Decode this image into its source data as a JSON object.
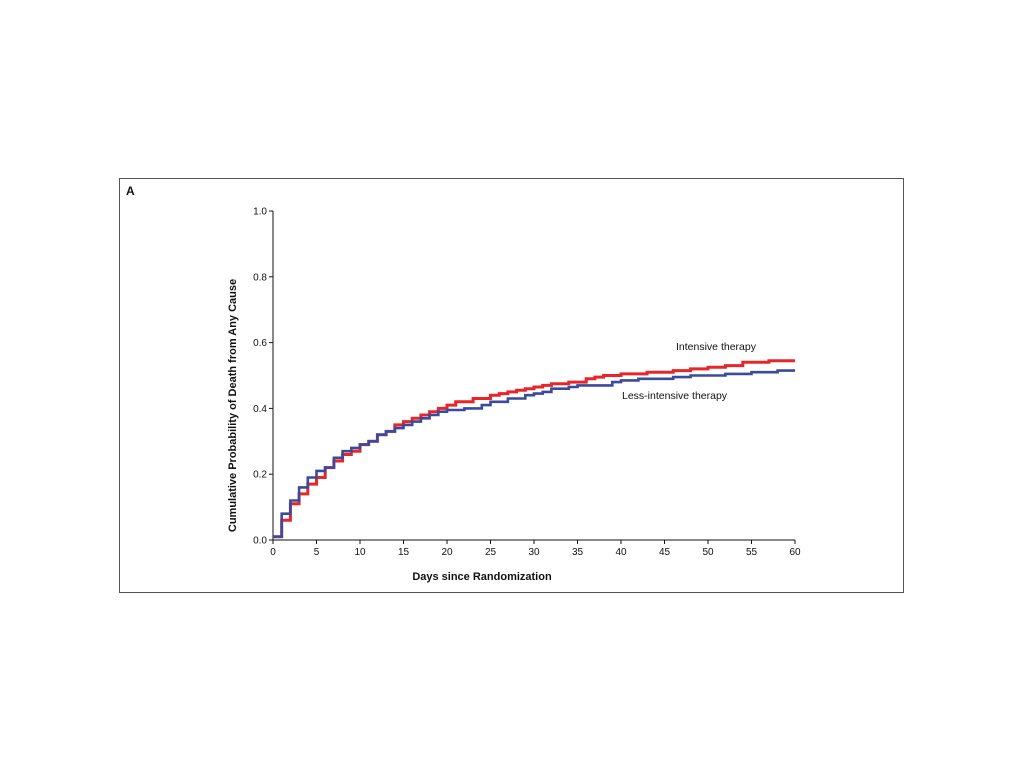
{
  "panel_label": "A",
  "chart_data": {
    "type": "line",
    "step": true,
    "xlabel": "Days since Randomization",
    "ylabel": "Cumulative Probability of Death from Any Cause",
    "xlim": [
      0,
      60
    ],
    "ylim": [
      0,
      1.0
    ],
    "x_ticks": [
      0,
      5,
      10,
      15,
      20,
      25,
      30,
      35,
      40,
      45,
      50,
      55,
      60
    ],
    "y_ticks": [
      0.0,
      0.2,
      0.4,
      0.6,
      0.8,
      1.0
    ],
    "y_tick_labels": [
      "0.0",
      "0.2",
      "0.4",
      "0.6",
      "0.8",
      "1.0"
    ],
    "grid": false,
    "legend": "inline labels near line ends",
    "series": [
      {
        "name": "Intensive therapy",
        "color": "#e8262a",
        "points": [
          [
            0,
            0.01
          ],
          [
            1,
            0.06
          ],
          [
            2,
            0.11
          ],
          [
            3,
            0.14
          ],
          [
            4,
            0.17
          ],
          [
            5,
            0.19
          ],
          [
            6,
            0.22
          ],
          [
            7,
            0.24
          ],
          [
            8,
            0.26
          ],
          [
            9,
            0.27
          ],
          [
            10,
            0.29
          ],
          [
            11,
            0.3
          ],
          [
            12,
            0.32
          ],
          [
            13,
            0.33
          ],
          [
            14,
            0.35
          ],
          [
            15,
            0.36
          ],
          [
            16,
            0.37
          ],
          [
            17,
            0.38
          ],
          [
            18,
            0.39
          ],
          [
            19,
            0.4
          ],
          [
            20,
            0.41
          ],
          [
            21,
            0.42
          ],
          [
            23,
            0.43
          ],
          [
            25,
            0.44
          ],
          [
            26,
            0.445
          ],
          [
            27,
            0.45
          ],
          [
            28,
            0.455
          ],
          [
            29,
            0.46
          ],
          [
            30,
            0.465
          ],
          [
            31,
            0.47
          ],
          [
            32,
            0.475
          ],
          [
            34,
            0.48
          ],
          [
            36,
            0.49
          ],
          [
            37,
            0.495
          ],
          [
            38,
            0.5
          ],
          [
            40,
            0.505
          ],
          [
            43,
            0.51
          ],
          [
            46,
            0.515
          ],
          [
            48,
            0.52
          ],
          [
            50,
            0.525
          ],
          [
            52,
            0.53
          ],
          [
            54,
            0.54
          ],
          [
            57,
            0.545
          ],
          [
            60,
            0.545
          ]
        ]
      },
      {
        "name": "Less-intensive therapy",
        "color": "#3a4a9c",
        "points": [
          [
            0,
            0.01
          ],
          [
            1,
            0.08
          ],
          [
            2,
            0.12
          ],
          [
            3,
            0.16
          ],
          [
            4,
            0.19
          ],
          [
            5,
            0.21
          ],
          [
            6,
            0.22
          ],
          [
            7,
            0.25
          ],
          [
            8,
            0.27
          ],
          [
            9,
            0.28
          ],
          [
            10,
            0.29
          ],
          [
            11,
            0.3
          ],
          [
            12,
            0.32
          ],
          [
            13,
            0.33
          ],
          [
            14,
            0.34
          ],
          [
            15,
            0.35
          ],
          [
            16,
            0.36
          ],
          [
            17,
            0.37
          ],
          [
            18,
            0.38
          ],
          [
            19,
            0.39
          ],
          [
            20,
            0.395
          ],
          [
            22,
            0.4
          ],
          [
            24,
            0.41
          ],
          [
            25,
            0.42
          ],
          [
            27,
            0.43
          ],
          [
            29,
            0.44
          ],
          [
            30,
            0.445
          ],
          [
            31,
            0.45
          ],
          [
            32,
            0.46
          ],
          [
            34,
            0.465
          ],
          [
            35,
            0.47
          ],
          [
            38,
            0.47
          ],
          [
            39,
            0.48
          ],
          [
            40,
            0.485
          ],
          [
            42,
            0.49
          ],
          [
            46,
            0.495
          ],
          [
            48,
            0.5
          ],
          [
            52,
            0.505
          ],
          [
            55,
            0.51
          ],
          [
            58,
            0.515
          ],
          [
            60,
            0.515
          ]
        ]
      }
    ]
  }
}
